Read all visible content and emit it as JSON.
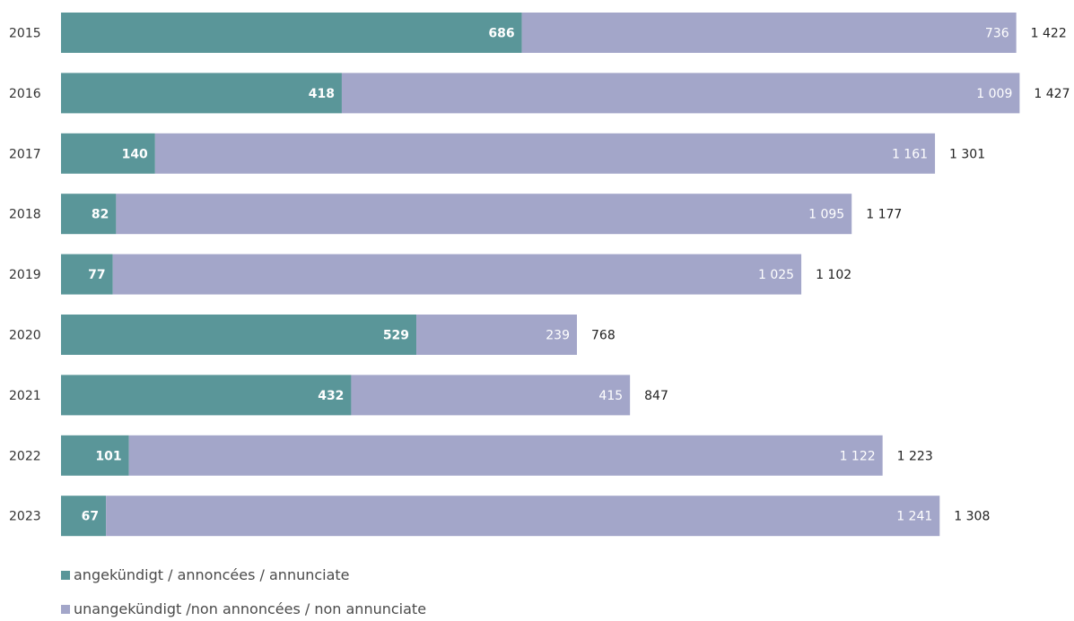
{
  "chart_data": {
    "type": "bar",
    "orientation": "horizontal",
    "stacked": true,
    "categories": [
      "2015",
      "2016",
      "2017",
      "2018",
      "2019",
      "2020",
      "2021",
      "2022",
      "2023"
    ],
    "series": [
      {
        "name": "angekündigt / annoncées / annunciate",
        "color": "#5a9699",
        "values": [
          686,
          418,
          140,
          82,
          77,
          529,
          432,
          101,
          67
        ]
      },
      {
        "name": "unangekündigt /non annoncées / non annunciate",
        "color": "#a3a6c9",
        "values": [
          736,
          1009,
          1161,
          1095,
          1025,
          239,
          415,
          1122,
          1241
        ]
      }
    ],
    "value_labels": {
      "series_0": [
        "686",
        "418",
        "140",
        "82",
        "77",
        "529",
        "432",
        "101",
        "67"
      ],
      "series_1": [
        "736",
        "1 009",
        "1 161",
        "1 095",
        "1 025",
        "239",
        "415",
        "1 122",
        "1 241"
      ]
    },
    "totals": [
      "1 422",
      "1 427",
      "1 301",
      "1 177",
      "1 102",
      "768",
      "847",
      "1 223",
      "1 308"
    ],
    "title": "",
    "xlabel": "",
    "ylabel": "",
    "grid": false,
    "legend_position": "bottom-left"
  }
}
